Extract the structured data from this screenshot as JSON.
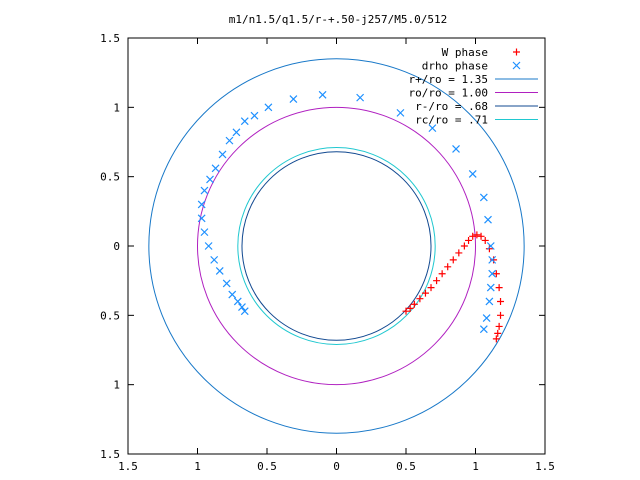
{
  "chart_data": {
    "type": "scatter",
    "title": "m1/n1.5/q1.5/r-+.50-j257/M5.0/512",
    "xlabel": "",
    "ylabel": "",
    "xlim": [
      -1.5,
      1.5
    ],
    "ylim": [
      -1.5,
      1.5
    ],
    "xticks": [
      -1.5,
      -1,
      -0.5,
      0,
      0.5,
      1,
      1.5
    ],
    "yticks": [
      -1.5,
      -1,
      -0.5,
      0,
      0.5,
      1,
      1.5
    ],
    "xtick_labels": [
      "1.5",
      "1",
      "0.5",
      "0",
      "0.5",
      "1",
      "1.5"
    ],
    "ytick_labels": [
      "1.5",
      "1",
      "0.5",
      "0",
      "0.5",
      "1",
      "1.5"
    ],
    "grid": false,
    "legend_position": "top-right",
    "colors": {
      "w_phase": "#ff0000",
      "drho_phase": "#1e90ff",
      "r_plus": "#1878c8",
      "ro": "#b020c0",
      "r_minus": "#104890",
      "rc": "#20c8d0"
    },
    "series": [
      {
        "name": "W phase",
        "marker": "plus",
        "x": [
          0.5,
          0.53,
          0.56,
          0.6,
          0.64,
          0.68,
          0.72,
          0.76,
          0.8,
          0.84,
          0.88,
          0.92,
          0.95,
          0.98,
          1.01,
          1.04,
          1.07,
          1.1,
          1.13,
          1.15,
          1.17,
          1.18,
          1.18,
          1.17,
          1.16,
          1.15
        ],
        "y": [
          -0.47,
          -0.45,
          -0.42,
          -0.38,
          -0.34,
          -0.3,
          -0.25,
          -0.2,
          -0.15,
          -0.1,
          -0.05,
          0.0,
          0.04,
          0.07,
          0.08,
          0.07,
          0.04,
          -0.02,
          -0.1,
          -0.2,
          -0.3,
          -0.4,
          -0.5,
          -0.58,
          -0.63,
          -0.67
        ]
      },
      {
        "name": "drho phase",
        "marker": "x",
        "x": [
          -0.1,
          0.17,
          0.46,
          0.69,
          0.86,
          0.98,
          1.06,
          1.09,
          1.11,
          1.12,
          1.12,
          1.11,
          1.1,
          1.08,
          1.06,
          -0.31,
          -0.49,
          -0.59,
          -0.66,
          -0.72,
          -0.77,
          -0.82,
          -0.87,
          -0.91,
          -0.95,
          -0.97,
          -0.97,
          -0.95,
          -0.92,
          -0.88,
          -0.84,
          -0.79,
          -0.75,
          -0.71,
          -0.68,
          -0.66
        ],
        "y": [
          1.09,
          1.07,
          0.96,
          0.85,
          0.7,
          0.52,
          0.35,
          0.19,
          0.0,
          -0.1,
          -0.2,
          -0.3,
          -0.4,
          -0.52,
          -0.6,
          1.06,
          1.0,
          0.94,
          0.9,
          0.82,
          0.76,
          0.66,
          0.56,
          0.48,
          0.4,
          0.3,
          0.2,
          0.1,
          0.0,
          -0.1,
          -0.18,
          -0.27,
          -0.35,
          -0.4,
          -0.44,
          -0.47
        ]
      }
    ],
    "circles": [
      {
        "name": "r+/ro = 1.35",
        "radius": 1.35
      },
      {
        "name": "ro/ro = 1.00",
        "radius": 1.0
      },
      {
        "name": "r-/ro = .68",
        "radius": 0.68
      },
      {
        "name": "rc/ro = .71",
        "radius": 0.71
      }
    ]
  }
}
